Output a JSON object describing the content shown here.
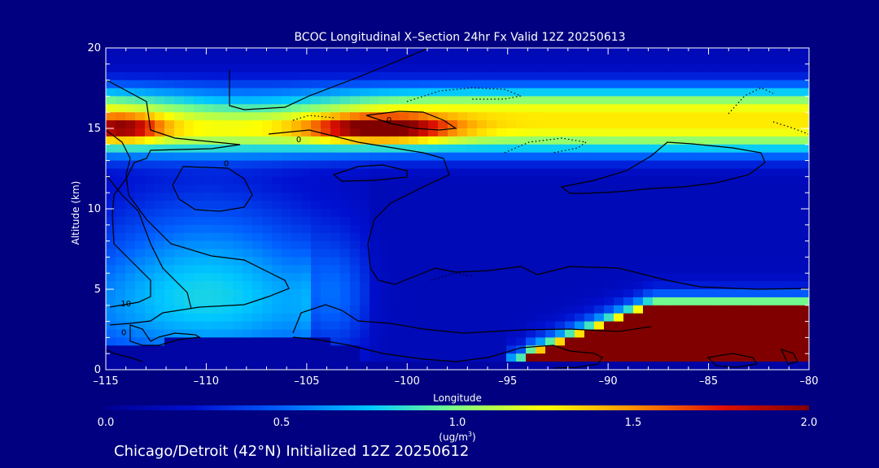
{
  "page": {
    "footer": "Chicago/Detroit (42°N) Initialized 12Z 20250612",
    "background": "#000080",
    "text_color": "#ffffff"
  },
  "chart_data": {
    "type": "heatmap",
    "title": "BCOC Longitudinal X–Section 24hr  Fx Valid 12Z 20250613",
    "xlabel": "Longitude",
    "ylabel": "Altitude (km)",
    "xlim": [
      -115,
      -80
    ],
    "ylim": [
      0,
      20
    ],
    "x_ticks": [
      -115,
      -110,
      -105,
      -100,
      -95,
      -90,
      -85,
      -80
    ],
    "x_tick_labels": [
      "–115",
      "–110",
      "–105",
      "–100",
      "–95",
      "–90",
      "–85",
      "–80"
    ],
    "y_ticks": [
      0,
      5,
      10,
      15,
      20
    ],
    "y_tick_labels": [
      "0",
      "5",
      "10",
      "15",
      "20"
    ],
    "grid": false,
    "colorbar": {
      "min": 0.0,
      "max": 2.0,
      "ticks": [
        0.0,
        0.5,
        1.0,
        1.5,
        2.0
      ],
      "tick_labels": [
        "0.0",
        "0.5",
        "1.0",
        "1.5",
        "2.0"
      ],
      "unit": "(ug/m",
      "unit_superscript": "3",
      "unit_close": ")",
      "colormap": [
        "#000090",
        "#0010d0",
        "#0060ff",
        "#00c8ff",
        "#80ff80",
        "#ffff00",
        "#ff9000",
        "#e01000",
        "#800000"
      ]
    },
    "field_features": [
      {
        "name": "upper layer",
        "lon_range": [
          -115,
          -80
        ],
        "alt_center": 15,
        "alt_halfwidth": 2.2,
        "value": 1.1
      },
      {
        "name": "upper maximum",
        "lon_center": -101,
        "alt_center": 15,
        "value": 2.0
      },
      {
        "name": "western maximum",
        "lon_center": -114,
        "alt_center": 15,
        "value": 1.8
      },
      {
        "name": "lower eastern maximum",
        "lon_range": [
          -95,
          -80
        ],
        "alt_range": [
          0.3,
          4
        ],
        "value": 2.0
      }
    ],
    "contour_labels": [
      {
        "text": "0",
        "lon": -100.9,
        "alt": 15.5
      },
      {
        "text": "0",
        "lon": -105.4,
        "alt": 14.3
      },
      {
        "text": "0",
        "lon": -109.0,
        "alt": 12.8
      },
      {
        "text": "10",
        "lon": -114.0,
        "alt": 4.1
      },
      {
        "text": "0",
        "lon": -114.1,
        "alt": 2.3
      }
    ]
  }
}
